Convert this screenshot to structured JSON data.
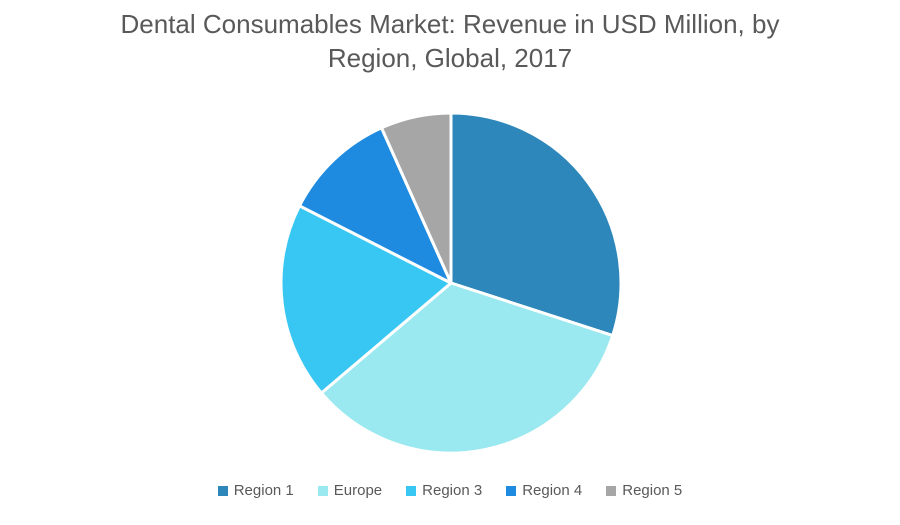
{
  "title": {
    "line1": "Dental Consumables Market: Revenue in USD Million, by",
    "line2": "Region, Global, 2017"
  },
  "chart_data": {
    "type": "pie",
    "title": "Dental Consumables Market: Revenue in USD Million, by Region, Global, 2017",
    "labels": [
      "Region 1",
      "Europe",
      "Region 3",
      "Region 4",
      "Region 5"
    ],
    "values": [
      30.0,
      33.8,
      18.7,
      10.8,
      6.7
    ],
    "unit": "% share (estimated from slice angles)",
    "colors": [
      "#2D87BB",
      "#9AE8F0",
      "#38C6F2",
      "#1E8BE0",
      "#A6A6A6"
    ],
    "start_angle": "12 o'clock",
    "direction": "clockwise",
    "slice_separator_color": "#FFFFFF",
    "legend_position": "bottom",
    "title_color": "#595959",
    "legend_text_color": "#595959",
    "background_color": "#FFFFFF"
  }
}
